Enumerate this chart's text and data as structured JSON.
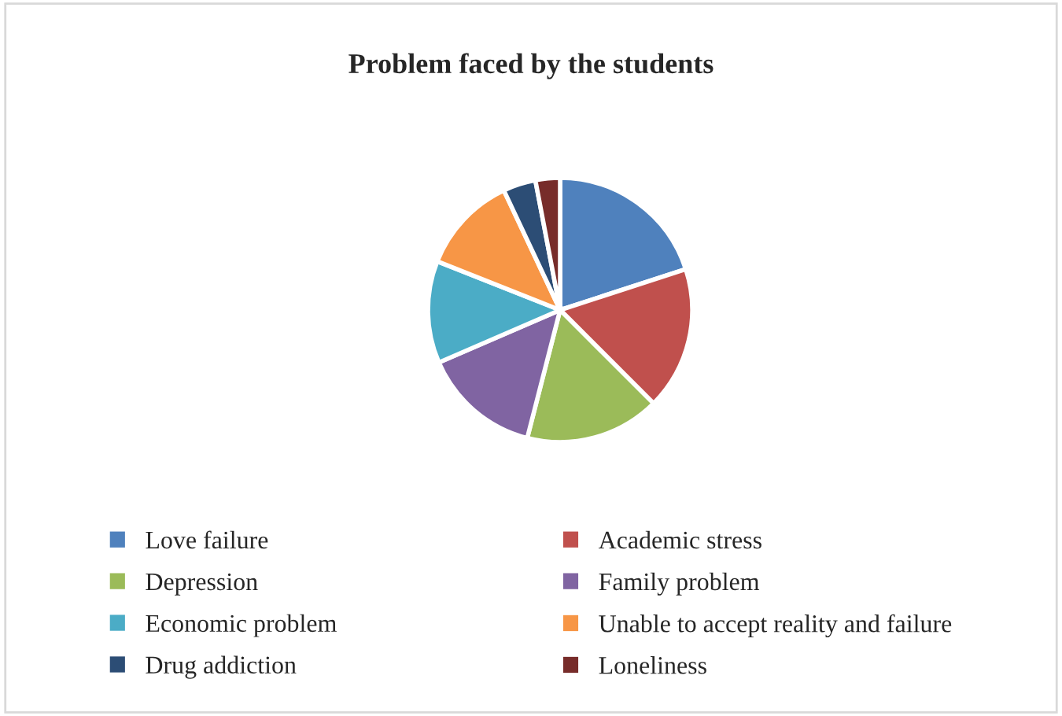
{
  "chart_data": {
    "type": "pie",
    "title": "Problem faced by the students",
    "categories": [
      "Love failure",
      "Academic stress",
      "Depression",
      "Family problem",
      "Economic problem",
      "Unable to accept reality and failure",
      "Drug addiction",
      "Loneliness"
    ],
    "values": [
      20,
      17.5,
      16.5,
      14.5,
      12.5,
      12,
      4,
      3
    ],
    "colors": [
      "#4f81bd",
      "#c0504d",
      "#9bbb59",
      "#8064a2",
      "#4bacc6",
      "#f79646",
      "#2c4d75",
      "#772c2a"
    ],
    "legend": "bottom"
  }
}
